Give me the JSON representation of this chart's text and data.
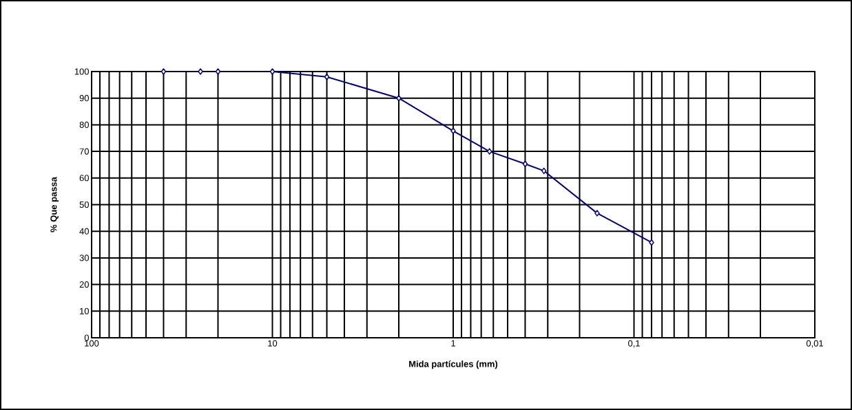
{
  "chart_data": {
    "type": "line",
    "xlabel": "Mida partícules (mm)",
    "ylabel": "% Que passa",
    "x": [
      40,
      25,
      20,
      10,
      5,
      2,
      1,
      0.63,
      0.4,
      0.315,
      0.16,
      0.08
    ],
    "series": [
      {
        "color": "#000080",
        "values": [
          100,
          100,
          100,
          100,
          98,
          90,
          77.7,
          70,
          65.3,
          62.7,
          46.8,
          35.8
        ]
      }
    ],
    "log": "x",
    "xlim": [
      100,
      0.01
    ],
    "ylim": [
      0,
      100
    ],
    "xticks": [
      {
        "value": 100,
        "label": "100"
      },
      {
        "value": 10,
        "label": "10"
      },
      {
        "value": 1,
        "label": "1"
      },
      {
        "value": 0.1,
        "label": "0,1"
      },
      {
        "value": 0.01,
        "label": "0,01"
      }
    ],
    "yticks": [
      0,
      10,
      20,
      30,
      40,
      50,
      60,
      70,
      80,
      90,
      100
    ],
    "grid": true,
    "marker": "diamond",
    "line_style": "solid"
  }
}
